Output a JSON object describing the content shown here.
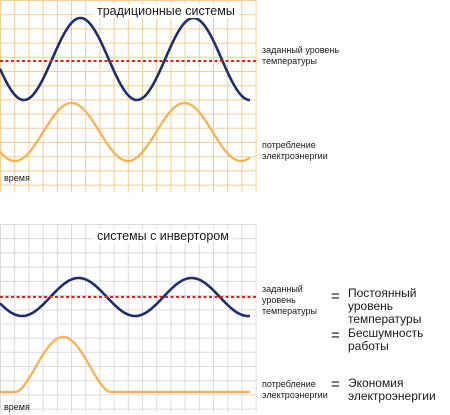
{
  "panel_traditional": {
    "title": "традиционные системы",
    "setpoint_label": "заданный уровень температуры",
    "power_label": "потребление электроэнергии",
    "time_label": "время"
  },
  "panel_inverter": {
    "title": "системы с инвертором",
    "setpoint_label": "заданный уровень температуры",
    "power_label": "потребление электроэнергии",
    "time_label": "время"
  },
  "benefits": [
    {
      "symbol": "=",
      "text": "Постоянный уровень температуры"
    },
    {
      "symbol": "=",
      "text": "Бесшумность работы"
    },
    {
      "symbol": "=",
      "text": "Экономия электроэнергии"
    }
  ],
  "colors": {
    "grid_traditional": "#f3cf95",
    "grid_inverter": "#dcdcdc",
    "temperature_curve": "#1f2f6e",
    "power_curve": "#f5b459",
    "setpoint_line": "#e0201b"
  }
}
